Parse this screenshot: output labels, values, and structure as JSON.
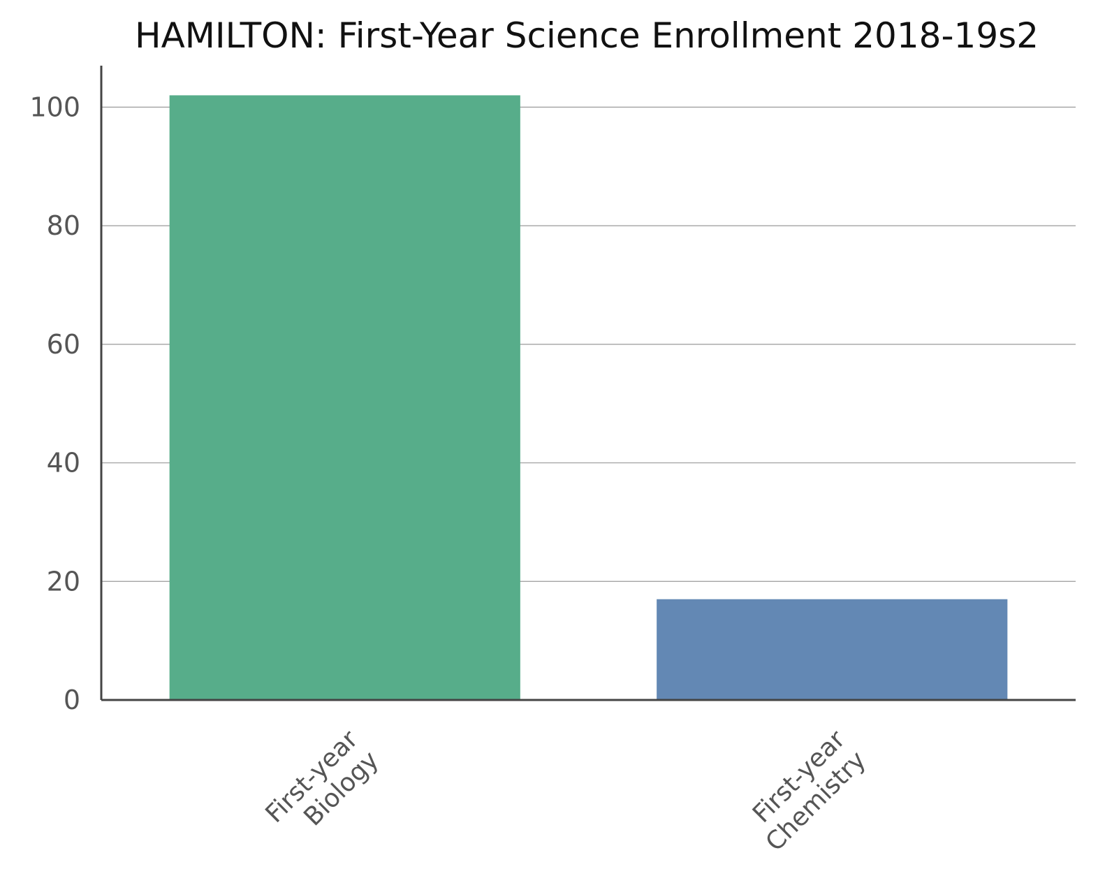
{
  "chart_data": {
    "type": "bar",
    "title": "HAMILTON: First-Year Science Enrollment 2018-19s2",
    "xlabel": "",
    "ylabel": "",
    "categories": [
      [
        "First-year",
        "Biology"
      ],
      [
        "First-year",
        "Chemistry"
      ]
    ],
    "values": [
      102,
      17
    ],
    "colors": [
      "#57ad8a",
      "#6388b4"
    ],
    "ylim": [
      0,
      107
    ],
    "yticks": [
      0,
      20,
      40,
      60,
      80,
      100
    ],
    "grid": true,
    "legend": "none"
  }
}
